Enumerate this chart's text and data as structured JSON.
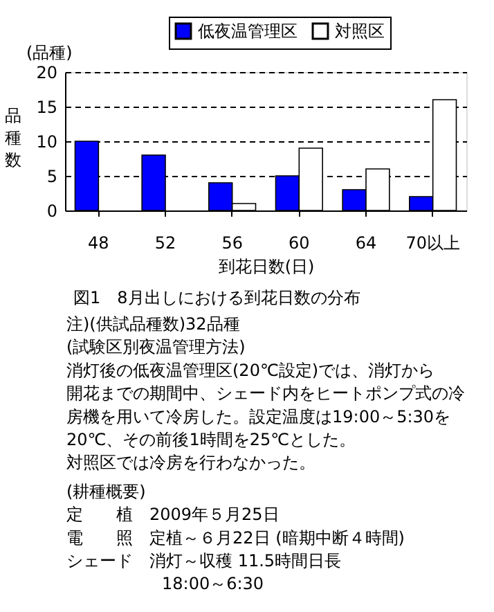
{
  "chart_data": {
    "type": "bar",
    "title": "図1　8月出しにおける到花日数の分布",
    "xlabel": "到花日数(日)",
    "ylabel": "品種数",
    "categories": [
      "48",
      "52",
      "56",
      "60",
      "64",
      "70以上"
    ],
    "series": [
      {
        "name": "低夜温管理区",
        "color": "#0000ff",
        "values": [
          10,
          8,
          4,
          5,
          3,
          2
        ]
      },
      {
        "name": "対照区",
        "color": "#ffffff",
        "values": [
          0,
          0,
          1,
          9,
          6,
          16
        ]
      }
    ],
    "ylim": [
      0,
      20
    ],
    "yticks": [
      0,
      5,
      10,
      15,
      20
    ],
    "grid": "y",
    "legend": "top",
    "annotations": [
      "(品種)",
      "注)(供試品種数)32品種",
      "(試験区別夜温管理方法)",
      "消灯後の低夜温管理区(20℃設定)では、消灯から",
      "開花までの期間中、シェード内をヒートポンプ式の冷",
      "房機を用いて冷房した。設定温度は19:00～5:30を",
      "20℃、その前後1時間を25℃とした。",
      "対照区では冷房を行わなかった。",
      "(耕種概要)",
      "定　　植　2009年５月25日",
      "電　　照　定植～６月22日 (暗期中断４時間)",
      "シェード　消灯～収穫 11.5時間日長",
      "18:00～6:30"
    ]
  }
}
